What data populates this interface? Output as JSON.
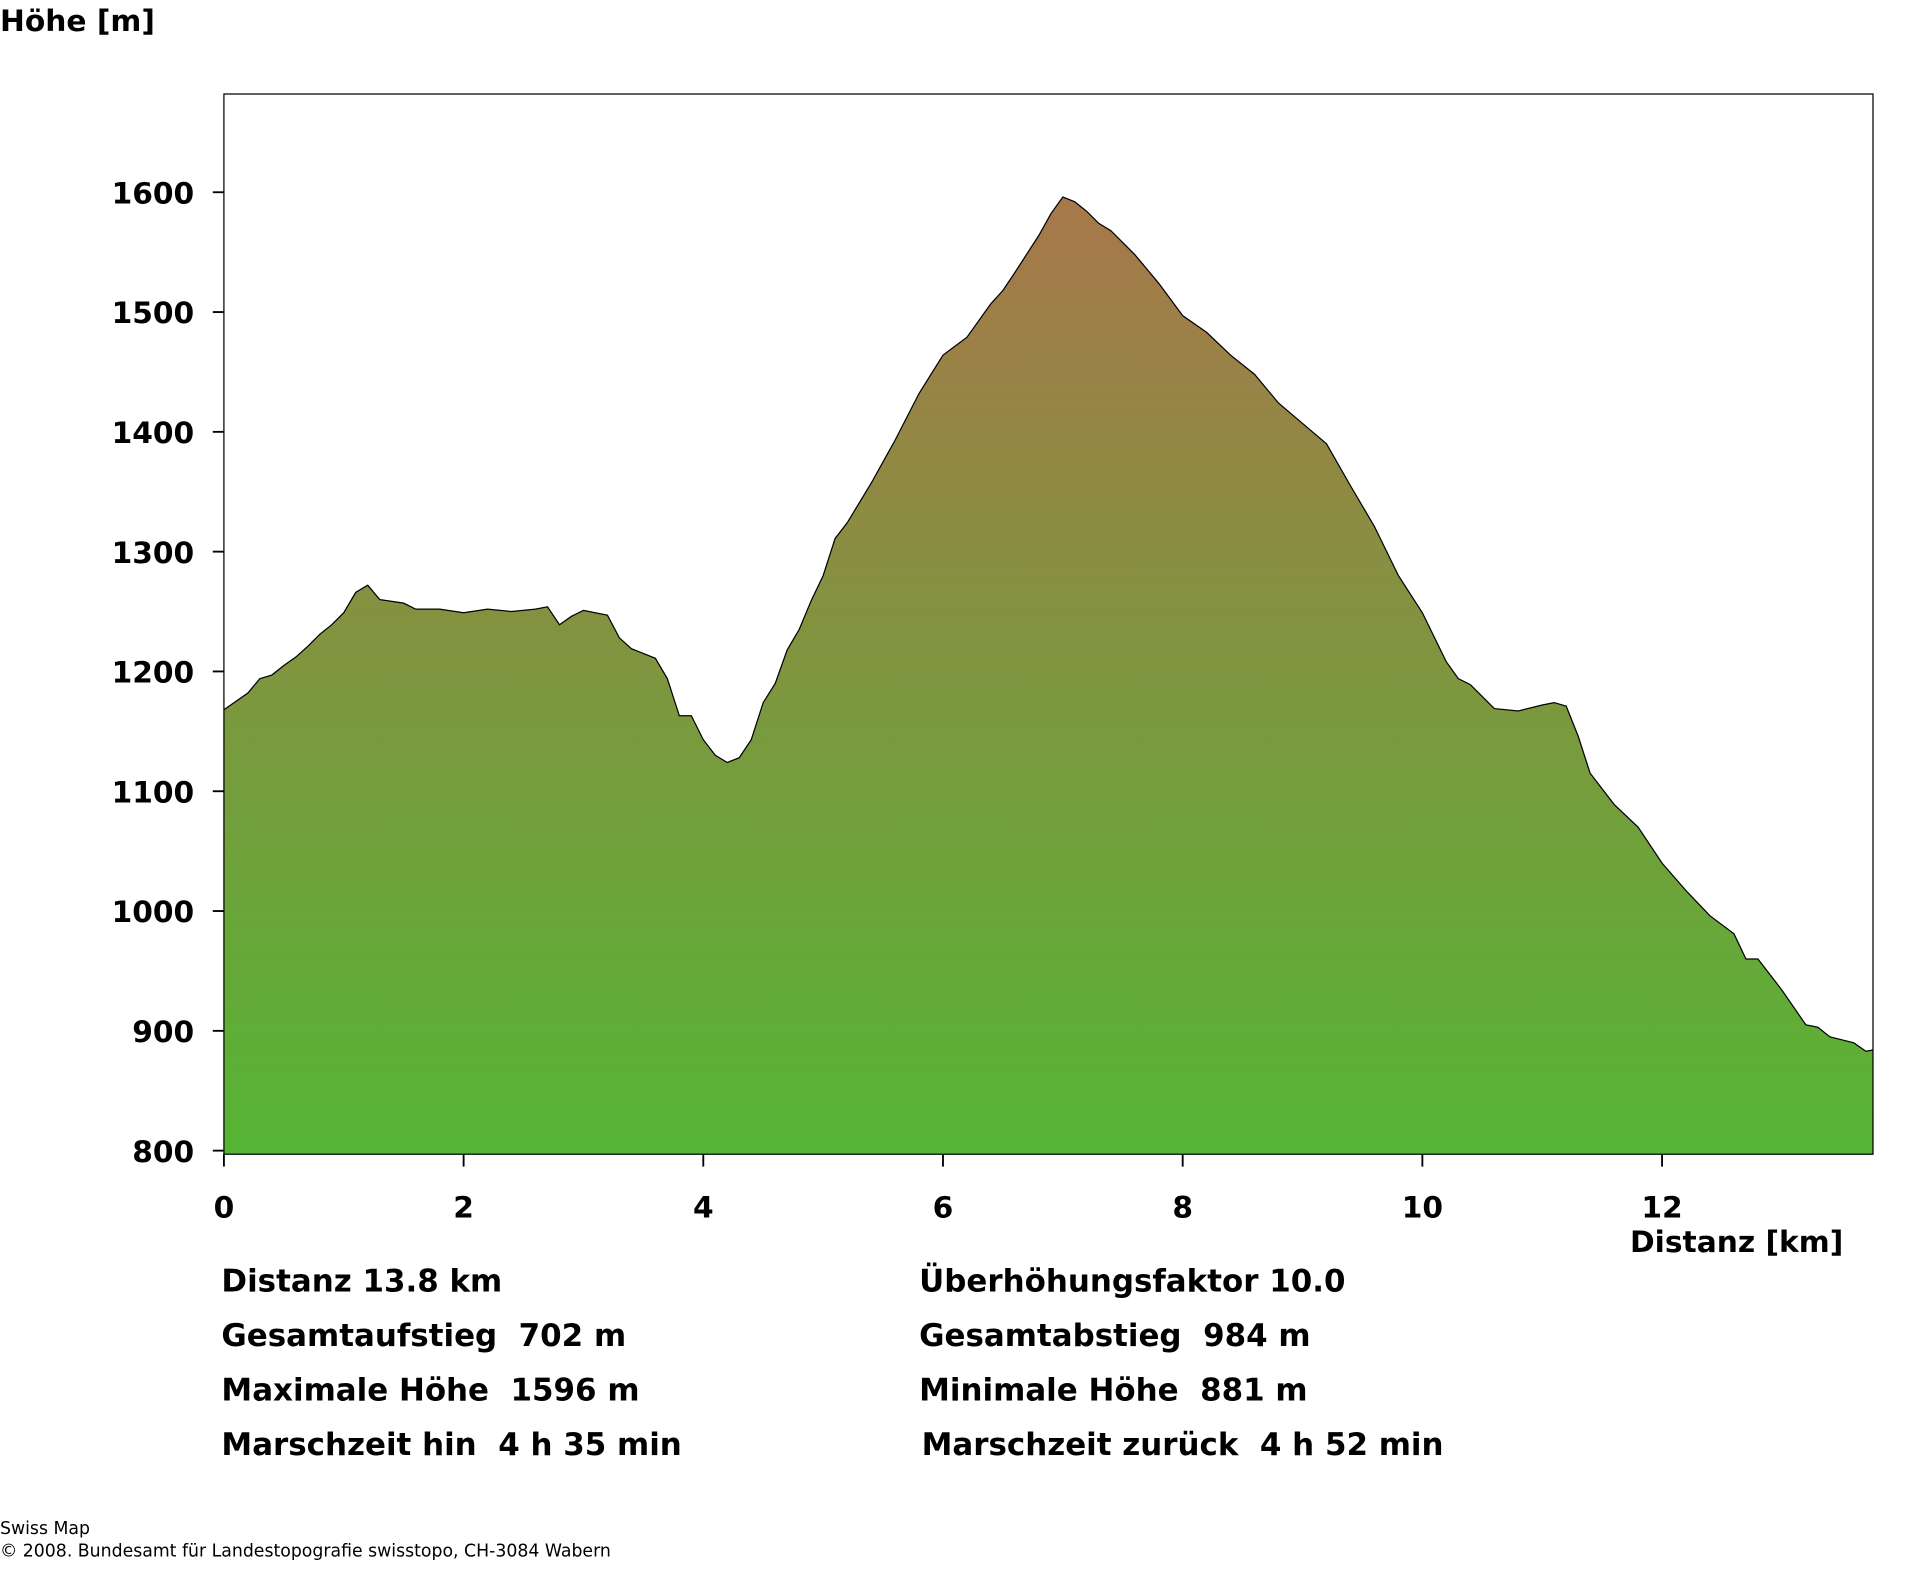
{
  "chart_data": {
    "type": "area",
    "y_label": "Höhe [m]",
    "x_label": "Distanz [km]",
    "x": [
      0,
      0.2,
      0.3,
      0.4,
      0.5,
      0.6,
      0.7,
      0.8,
      0.9,
      1.0,
      1.1,
      1.2,
      1.3,
      1.5,
      1.6,
      1.8,
      2.0,
      2.2,
      2.4,
      2.6,
      2.7,
      2.8,
      2.9,
      3.0,
      3.2,
      3.3,
      3.4,
      3.6,
      3.7,
      3.8,
      3.9,
      4.0,
      4.1,
      4.2,
      4.3,
      4.4,
      4.5,
      4.6,
      4.7,
      4.8,
      4.9,
      5.0,
      5.1,
      5.2,
      5.4,
      5.6,
      5.8,
      5.9,
      6.0,
      6.2,
      6.4,
      6.5,
      6.6,
      6.8,
      6.9,
      7.0,
      7.1,
      7.2,
      7.3,
      7.4,
      7.6,
      7.8,
      8.0,
      8.2,
      8.4,
      8.6,
      8.8,
      9.0,
      9.2,
      9.4,
      9.6,
      9.8,
      10.0,
      10.2,
      10.3,
      10.4,
      10.5,
      10.6,
      10.8,
      11.0,
      11.1,
      11.2,
      11.3,
      11.4,
      11.6,
      11.8,
      12.0,
      12.2,
      12.4,
      12.6,
      12.7,
      12.8,
      13.0,
      13.2,
      13.3,
      13.4,
      13.6,
      13.7,
      13.76
    ],
    "values": [
      1168,
      1182,
      1194,
      1197,
      1205,
      1212,
      1221,
      1231,
      1239,
      1249,
      1266,
      1272,
      1260,
      1257,
      1252,
      1252,
      1249,
      1252,
      1250,
      1252,
      1254,
      1239,
      1246,
      1251,
      1247,
      1228,
      1219,
      1211,
      1194,
      1163,
      1163,
      1143,
      1130,
      1124,
      1128,
      1143,
      1174,
      1190,
      1218,
      1235,
      1259,
      1280,
      1311,
      1324,
      1357,
      1393,
      1432,
      1448,
      1464,
      1479,
      1507,
      1518,
      1533,
      1564,
      1582,
      1596,
      1592,
      1584,
      1574,
      1568,
      1548,
      1524,
      1497,
      1483,
      1464,
      1448,
      1424,
      1407,
      1390,
      1355,
      1321,
      1280,
      1249,
      1208,
      1194,
      1189,
      1179,
      1169,
      1167,
      1172,
      1174,
      1171,
      1146,
      1115,
      1089,
      1070,
      1040,
      1017,
      996,
      981,
      960,
      960,
      934,
      905,
      903,
      895,
      890,
      883,
      884
    ],
    "colors": [
      "#a8774a",
      "#55b534"
    ],
    "xlim": [
      0,
      13.76
    ],
    "ylim": [
      797,
      1682
    ],
    "xticks": [
      0,
      2,
      4,
      6,
      8,
      10,
      12
    ],
    "yticks": [
      800,
      900,
      1000,
      1100,
      1200,
      1300,
      1400,
      1500,
      1600
    ]
  },
  "stats_left": [
    "Distanz 13.8 km",
    "Gesamtaufstieg  702 m",
    "Maximale Höhe  1596 m",
    "Marschzeit hin  4 h 35 min"
  ],
  "stats_right": [
    "Überhöhungsfaktor 10.0",
    "Gesamtabstieg  984 m",
    "Minimale Höhe  881 m",
    "Marschzeit zurück  4 h 52 min"
  ],
  "footer": [
    "Swiss Map",
    "© 2008. Bundesamt für Landestopografie swisstopo, CH-3084 Wabern"
  ]
}
